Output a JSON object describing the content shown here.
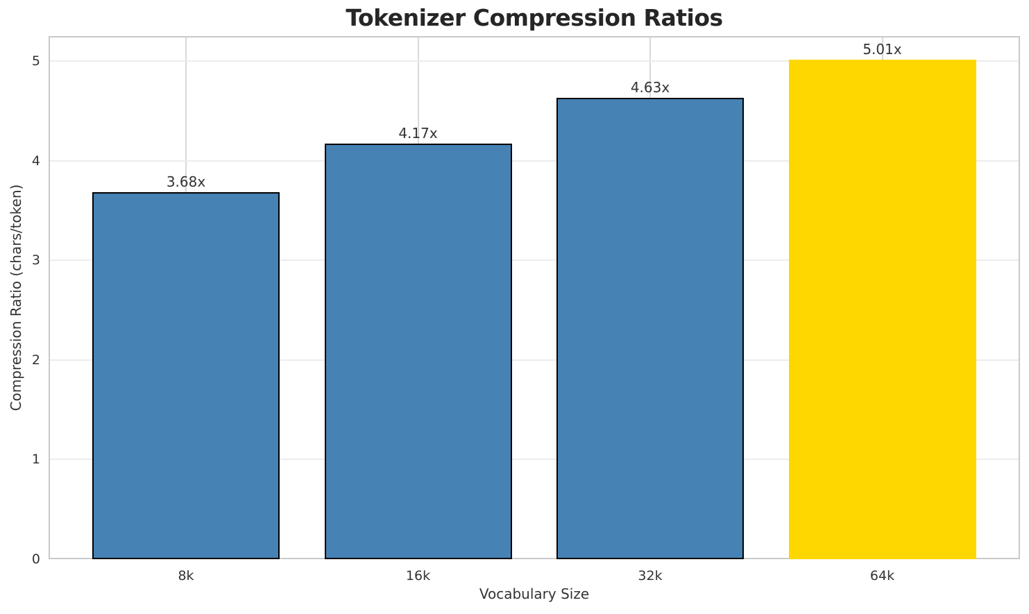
{
  "chart_data": {
    "type": "bar",
    "title": "Tokenizer Compression Ratios",
    "xlabel": "Vocabulary Size",
    "ylabel": "Compression Ratio (chars/token)",
    "categories": [
      "8k",
      "16k",
      "32k",
      "64k"
    ],
    "values": [
      3.68,
      4.17,
      4.63,
      5.01
    ],
    "value_labels": [
      "3.68x",
      "4.17x",
      "4.63x",
      "5.01x"
    ],
    "bar_colors": [
      "#4682B4",
      "#4682B4",
      "#4682B4",
      "#FFD700"
    ],
    "bar_edge_colors": [
      "#000000",
      "#000000",
      "#000000",
      "#FFD700"
    ],
    "highlighted_category": "64k",
    "y_ticks": [
      0,
      1,
      2,
      3,
      4,
      5
    ],
    "ylim": [
      0,
      5.25
    ],
    "grid": "both",
    "legend_position": "none"
  },
  "style": {
    "title_color": "#262626",
    "text_color": "#333333",
    "spine_color": "#c9c9c9",
    "horizontal_grid_color": "#ececec",
    "vertical_grid_color": "#d9d9d9",
    "background_color": "#ffffff",
    "bar_primary_color": "#4682B4",
    "bar_highlight_color": "#FFD700"
  }
}
